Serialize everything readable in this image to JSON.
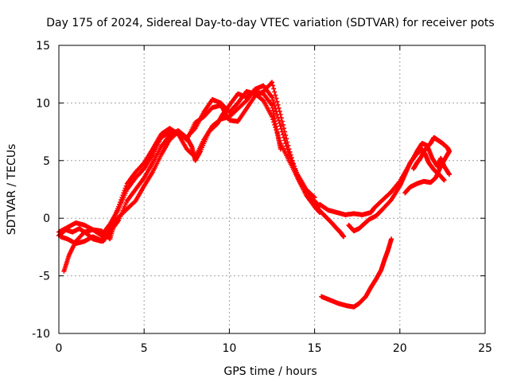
{
  "chart_data": {
    "type": "scatter",
    "title": "Day 175 of 2024, Sidereal Day-to-day VTEC variation (SDTVAR) for receiver pots",
    "xlabel": "GPS time / hours",
    "ylabel": "SDTVAR / TECUs",
    "xlim": [
      0,
      25
    ],
    "ylim": [
      -10,
      15
    ],
    "xticks": [
      0,
      5,
      10,
      15,
      20,
      25
    ],
    "yticks": [
      -10,
      -5,
      0,
      5,
      10,
      15
    ],
    "grid": true,
    "marker": "+",
    "color": "#ff0000",
    "series": [
      {
        "name": "track-1",
        "points": [
          [
            0.0,
            -1.2
          ],
          [
            0.5,
            -0.8
          ],
          [
            1.0,
            -0.4
          ],
          [
            1.5,
            -0.6
          ],
          [
            2.0,
            -1.0
          ],
          [
            2.5,
            -1.5
          ],
          [
            3.0,
            -0.5
          ],
          [
            3.5,
            0.8
          ],
          [
            4.0,
            2.5
          ],
          [
            4.5,
            3.5
          ],
          [
            5.0,
            4.3
          ],
          [
            5.5,
            5.5
          ],
          [
            6.0,
            7.0
          ],
          [
            6.5,
            7.5
          ],
          [
            7.0,
            7.5
          ],
          [
            7.5,
            7.0
          ],
          [
            8.0,
            7.8
          ],
          [
            8.5,
            9.2
          ],
          [
            9.0,
            10.3
          ],
          [
            9.5,
            10.0
          ],
          [
            10.0,
            9.2
          ],
          [
            10.5,
            10.0
          ],
          [
            11.0,
            11.0
          ],
          [
            11.5,
            10.8
          ],
          [
            12.0,
            10.2
          ],
          [
            12.5,
            8.8
          ],
          [
            13.0,
            6.5
          ],
          [
            13.5,
            5.0
          ],
          [
            14.0,
            3.5
          ],
          [
            14.5,
            2.2
          ],
          [
            15.0,
            1.5
          ],
          [
            15.3,
            1.0
          ]
        ]
      },
      {
        "name": "track-2",
        "points": [
          [
            0.0,
            -1.5
          ],
          [
            0.4,
            -1.0
          ],
          [
            0.8,
            -1.2
          ],
          [
            1.2,
            -0.9
          ],
          [
            1.6,
            -1.3
          ],
          [
            2.0,
            -1.8
          ],
          [
            2.5,
            -2.0
          ],
          [
            3.0,
            -0.8
          ],
          [
            3.5,
            1.0
          ],
          [
            4.0,
            3.0
          ],
          [
            4.5,
            4.0
          ],
          [
            5.0,
            4.8
          ],
          [
            5.5,
            6.0
          ],
          [
            6.0,
            7.3
          ],
          [
            6.5,
            7.8
          ],
          [
            7.0,
            7.3
          ],
          [
            7.5,
            6.0
          ],
          [
            8.0,
            5.3
          ],
          [
            8.5,
            6.8
          ],
          [
            9.0,
            8.0
          ],
          [
            9.5,
            8.6
          ],
          [
            10.0,
            8.8
          ],
          [
            10.5,
            9.5
          ],
          [
            11.0,
            10.2
          ],
          [
            11.5,
            11.2
          ],
          [
            12.0,
            11.5
          ],
          [
            12.5,
            10.5
          ],
          [
            13.0,
            8.0
          ],
          [
            13.5,
            5.5
          ],
          [
            14.0,
            3.8
          ],
          [
            14.5,
            2.5
          ],
          [
            15.0,
            1.8
          ]
        ]
      },
      {
        "name": "track-3",
        "points": [
          [
            0.3,
            -4.6
          ],
          [
            0.6,
            -3.2
          ],
          [
            1.0,
            -2.0
          ],
          [
            1.5,
            -1.2
          ],
          [
            2.0,
            -1.0
          ],
          [
            2.5,
            -1.1
          ],
          [
            3.0,
            -1.8
          ],
          [
            3.3,
            -0.2
          ],
          [
            4.0,
            0.8
          ],
          [
            4.5,
            1.5
          ],
          [
            5.0,
            2.8
          ],
          [
            5.5,
            4.0
          ],
          [
            6.0,
            5.5
          ],
          [
            6.5,
            6.8
          ],
          [
            7.0,
            7.5
          ],
          [
            7.5,
            6.8
          ],
          [
            8.0,
            8.3
          ],
          [
            8.5,
            8.8
          ],
          [
            9.0,
            9.6
          ],
          [
            9.5,
            9.8
          ],
          [
            10.0,
            8.5
          ],
          [
            10.5,
            8.4
          ],
          [
            11.0,
            9.5
          ],
          [
            11.5,
            10.6
          ],
          [
            12.0,
            11.0
          ],
          [
            12.5,
            11.8
          ],
          [
            13.0,
            9.0
          ],
          [
            13.5,
            6.0
          ],
          [
            14.0,
            3.5
          ],
          [
            14.5,
            2.0
          ],
          [
            15.0,
            1.0
          ],
          [
            15.3,
            0.5
          ]
        ]
      },
      {
        "name": "track-4",
        "points": [
          [
            0.1,
            -1.6
          ],
          [
            0.5,
            -1.8
          ],
          [
            1.0,
            -2.2
          ],
          [
            1.5,
            -2.0
          ],
          [
            2.0,
            -1.6
          ],
          [
            2.6,
            -2.0
          ],
          [
            3.0,
            -1.2
          ],
          [
            3.5,
            -0.2
          ],
          [
            4.0,
            1.5
          ],
          [
            4.5,
            2.5
          ],
          [
            5.0,
            3.5
          ],
          [
            5.5,
            4.8
          ],
          [
            6.0,
            6.2
          ],
          [
            6.5,
            7.2
          ],
          [
            7.0,
            7.6
          ],
          [
            7.5,
            7.0
          ],
          [
            7.8,
            6.2
          ],
          [
            8.0,
            5.0
          ],
          [
            8.3,
            5.8
          ],
          [
            8.8,
            7.5
          ],
          [
            9.3,
            8.2
          ],
          [
            9.6,
            9.0
          ],
          [
            10.0,
            9.8
          ],
          [
            10.5,
            10.8
          ],
          [
            11.0,
            10.5
          ],
          [
            11.5,
            11.0
          ],
          [
            12.0,
            10.8
          ],
          [
            12.5,
            9.8
          ],
          [
            12.8,
            7.5
          ],
          [
            13.0,
            6.0
          ]
        ]
      },
      {
        "name": "track-5",
        "points": [
          [
            15.3,
            1.2
          ],
          [
            15.8,
            0.7
          ],
          [
            16.3,
            0.5
          ],
          [
            16.8,
            0.3
          ],
          [
            17.3,
            0.4
          ],
          [
            17.8,
            0.3
          ],
          [
            18.3,
            0.5
          ],
          [
            18.5,
            0.9
          ],
          [
            19.0,
            1.6
          ],
          [
            19.5,
            2.3
          ],
          [
            20.0,
            3.2
          ],
          [
            20.5,
            4.5
          ],
          [
            21.0,
            5.8
          ],
          [
            21.3,
            6.5
          ],
          [
            21.6,
            6.3
          ],
          [
            21.9,
            5.2
          ],
          [
            22.2,
            4.5
          ],
          [
            22.4,
            5.2
          ],
          [
            22.6,
            4.5
          ],
          [
            22.9,
            3.8
          ]
        ]
      },
      {
        "name": "track-6",
        "points": [
          [
            15.2,
            0.8
          ],
          [
            15.6,
            0.2
          ],
          [
            16.0,
            -0.4
          ],
          [
            16.3,
            -0.9
          ],
          [
            16.5,
            -1.2
          ],
          [
            16.7,
            -1.6
          ]
        ]
      },
      {
        "name": "track-7",
        "points": [
          [
            17.0,
            -0.6
          ],
          [
            17.3,
            -1.1
          ],
          [
            17.6,
            -0.9
          ],
          [
            17.9,
            -0.5
          ],
          [
            18.2,
            -0.1
          ],
          [
            18.6,
            0.2
          ],
          [
            19.0,
            0.8
          ],
          [
            19.5,
            1.6
          ],
          [
            20.0,
            2.8
          ],
          [
            20.3,
            3.8
          ],
          [
            20.6,
            4.8
          ],
          [
            21.0,
            5.6
          ],
          [
            21.3,
            6.0
          ],
          [
            21.5,
            5.5
          ],
          [
            21.7,
            4.8
          ],
          [
            22.0,
            4.2
          ],
          [
            22.3,
            3.8
          ],
          [
            22.6,
            3.3
          ]
        ]
      },
      {
        "name": "track-8",
        "points": [
          [
            20.3,
            2.2
          ],
          [
            20.6,
            2.7
          ],
          [
            21.0,
            3.0
          ],
          [
            21.4,
            3.2
          ],
          [
            21.8,
            3.1
          ],
          [
            22.1,
            3.5
          ],
          [
            22.4,
            4.5
          ],
          [
            22.7,
            5.3
          ],
          [
            22.9,
            5.8
          ],
          [
            22.8,
            6.1
          ],
          [
            22.5,
            6.5
          ],
          [
            22.2,
            6.8
          ],
          [
            22.0,
            7.0
          ],
          [
            21.8,
            6.5
          ],
          [
            21.5,
            6.0
          ],
          [
            21.2,
            5.2
          ],
          [
            21.0,
            4.8
          ],
          [
            20.8,
            4.3
          ]
        ]
      },
      {
        "name": "track-9",
        "points": [
          [
            15.4,
            -6.8
          ],
          [
            15.9,
            -7.1
          ],
          [
            16.4,
            -7.4
          ],
          [
            16.9,
            -7.6
          ],
          [
            17.3,
            -7.7
          ],
          [
            17.6,
            -7.4
          ],
          [
            18.0,
            -6.8
          ],
          [
            18.3,
            -6.0
          ],
          [
            18.6,
            -5.3
          ],
          [
            18.9,
            -4.5
          ],
          [
            19.1,
            -3.6
          ],
          [
            19.3,
            -2.8
          ],
          [
            19.5,
            -1.8
          ]
        ]
      }
    ]
  }
}
